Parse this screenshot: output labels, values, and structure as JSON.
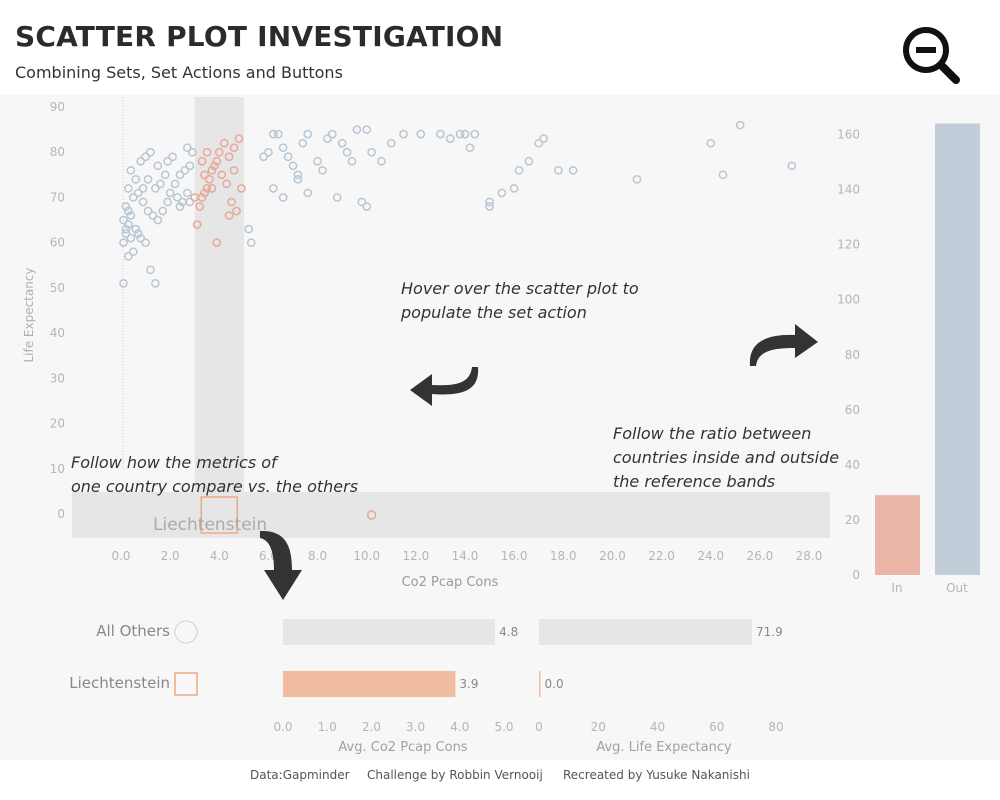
{
  "header": {
    "title": "SCATTER PLOT INVESTIGATION",
    "subtitle": "Combining Sets, Set Actions and Buttons",
    "zoom_icon": "zoom-out-icon"
  },
  "annotations": {
    "hover": [
      "Hover over the scatter plot to",
      "populate the set action"
    ],
    "follow_ratio": [
      "Follow the ratio between",
      "countries inside and outside",
      "the reference bands"
    ],
    "follow_metrics": [
      "Follow how the metrics of",
      "one country compare vs. the others"
    ]
  },
  "colors": {
    "in": "#e8a899",
    "out": "#b8c6d3",
    "band": "#e6e6e6",
    "highlight": "#f0a884",
    "arrow": "#333333"
  },
  "chart_data": [
    {
      "type": "scatter",
      "xlabel": "Co2 Pcap Cons",
      "ylabel": "Life Expectancy",
      "xlim": [
        0,
        28
      ],
      "ylim": [
        0,
        90
      ],
      "x_ticks": [
        "0.0",
        "2.0",
        "4.0",
        "6.0",
        "8.0",
        "10.0",
        "12.0",
        "14.0",
        "16.0",
        "18.0",
        "20.0",
        "22.0",
        "24.0",
        "26.0",
        "28.0"
      ],
      "y_ticks": [
        "0",
        "10",
        "20",
        "30",
        "40",
        "50",
        "60",
        "70",
        "80",
        "90"
      ],
      "reference_band_x": [
        3.0,
        5.0
      ],
      "highlight_label": "Liechtenstein",
      "highlight_point": {
        "x": 4.0,
        "y": 0
      },
      "series": [
        {
          "name": "Out",
          "points": [
            [
              0.1,
              51
            ],
            [
              0.3,
              57
            ],
            [
              0.1,
              60
            ],
            [
              0.2,
              62
            ],
            [
              0.3,
              64
            ],
            [
              0.1,
              65
            ],
            [
              0.4,
              66
            ],
            [
              0.2,
              68
            ],
            [
              0.5,
              70
            ],
            [
              0.3,
              72
            ],
            [
              0.6,
              74
            ],
            [
              0.4,
              76
            ],
            [
              0.8,
              78
            ],
            [
              1.0,
              79
            ],
            [
              1.2,
              80
            ],
            [
              0.7,
              71
            ],
            [
              0.9,
              69
            ],
            [
              1.1,
              67
            ],
            [
              1.3,
              66
            ],
            [
              0.6,
              63
            ],
            [
              0.8,
              61
            ],
            [
              1.0,
              60
            ],
            [
              1.5,
              65
            ],
            [
              1.7,
              67
            ],
            [
              1.9,
              69
            ],
            [
              2.0,
              71
            ],
            [
              2.2,
              73
            ],
            [
              2.4,
              75
            ],
            [
              2.6,
              76
            ],
            [
              2.8,
              77
            ],
            [
              1.6,
              73
            ],
            [
              1.8,
              75
            ],
            [
              1.4,
              72
            ],
            [
              2.3,
              70
            ],
            [
              2.5,
              69
            ],
            [
              2.7,
              71
            ],
            [
              1.2,
              54
            ],
            [
              1.4,
              51
            ],
            [
              0.5,
              58
            ],
            [
              0.7,
              62
            ],
            [
              0.3,
              67
            ],
            [
              0.9,
              72
            ],
            [
              1.1,
              74
            ],
            [
              1.5,
              77
            ],
            [
              1.9,
              78
            ],
            [
              2.1,
              79
            ],
            [
              2.7,
              81
            ],
            [
              2.9,
              80
            ],
            [
              2.4,
              68
            ],
            [
              2.8,
              69
            ],
            [
              5.2,
              63
            ],
            [
              5.3,
              60
            ],
            [
              5.8,
              79
            ],
            [
              6.0,
              80
            ],
            [
              6.2,
              84
            ],
            [
              6.4,
              84
            ],
            [
              6.6,
              81
            ],
            [
              6.8,
              79
            ],
            [
              7.0,
              77
            ],
            [
              7.2,
              75
            ],
            [
              7.4,
              82
            ],
            [
              7.6,
              84
            ],
            [
              8.0,
              78
            ],
            [
              8.2,
              76
            ],
            [
              8.4,
              83
            ],
            [
              8.6,
              84
            ],
            [
              9.0,
              82
            ],
            [
              9.2,
              80
            ],
            [
              9.4,
              78
            ],
            [
              9.6,
              85
            ],
            [
              10.0,
              85
            ],
            [
              10.2,
              80
            ],
            [
              10.6,
              78
            ],
            [
              11.0,
              82
            ],
            [
              8.8,
              70
            ],
            [
              9.8,
              69
            ],
            [
              10.0,
              68
            ],
            [
              6.2,
              72
            ],
            [
              6.6,
              70
            ],
            [
              7.2,
              74
            ],
            [
              7.6,
              71
            ],
            [
              13.0,
              84
            ],
            [
              13.4,
              83
            ],
            [
              13.8,
              84
            ],
            [
              14.0,
              84
            ],
            [
              14.4,
              84
            ],
            [
              14.2,
              81
            ],
            [
              15.0,
              69
            ],
            [
              15.0,
              68
            ],
            [
              15.5,
              71
            ],
            [
              16.0,
              72
            ],
            [
              16.2,
              76
            ],
            [
              16.6,
              78
            ],
            [
              17.0,
              82
            ],
            [
              17.2,
              83
            ],
            [
              17.8,
              76
            ],
            [
              18.4,
              76
            ],
            [
              21.0,
              74
            ],
            [
              24.0,
              82
            ],
            [
              24.5,
              75
            ],
            [
              25.2,
              86
            ],
            [
              27.3,
              77
            ],
            [
              12.2,
              84
            ],
            [
              11.5,
              84
            ],
            [
              0.2,
              63
            ],
            [
              0.4,
              61
            ]
          ]
        },
        {
          "name": "In",
          "points": [
            [
              3.1,
              64
            ],
            [
              3.2,
              68
            ],
            [
              3.3,
              70
            ],
            [
              3.4,
              71
            ],
            [
              3.5,
              72
            ],
            [
              3.6,
              74
            ],
            [
              3.7,
              76
            ],
            [
              3.8,
              77
            ],
            [
              3.9,
              78
            ],
            [
              4.0,
              80
            ],
            [
              4.2,
              82
            ],
            [
              4.4,
              79
            ],
            [
              4.6,
              81
            ],
            [
              4.8,
              83
            ],
            [
              3.3,
              78
            ],
            [
              3.5,
              80
            ],
            [
              4.1,
              75
            ],
            [
              4.3,
              73
            ],
            [
              4.5,
              69
            ],
            [
              4.7,
              67
            ],
            [
              4.9,
              72
            ],
            [
              3.9,
              60
            ],
            [
              3.7,
              72
            ],
            [
              3.4,
              75
            ],
            [
              4.6,
              76
            ],
            [
              3.0,
              70
            ],
            [
              4.4,
              66
            ]
          ]
        }
      ]
    },
    {
      "type": "bar",
      "categories": [
        "In",
        "Out"
      ],
      "values": [
        29,
        164
      ],
      "ylim": [
        0,
        170
      ],
      "y_ticks": [
        "0",
        "20",
        "40",
        "60",
        "80",
        "100",
        "120",
        "140",
        "160"
      ]
    },
    {
      "type": "bar",
      "xlabel": "Avg. Co2 Pcap Cons",
      "categories": [
        "All Others",
        "Liechtenstein"
      ],
      "values": [
        4.8,
        3.9
      ],
      "value_labels": [
        "4.8",
        "3.9"
      ],
      "xlim": [
        0,
        5.0
      ],
      "x_ticks": [
        "0.0",
        "1.0",
        "2.0",
        "3.0",
        "4.0",
        "5.0"
      ]
    },
    {
      "type": "bar",
      "xlabel": "Avg. Life Expectancy",
      "categories": [
        "All Others",
        "Liechtenstein"
      ],
      "values": [
        71.9,
        0.0
      ],
      "value_labels": [
        "71.9",
        "0.0"
      ],
      "xlim": [
        0,
        80
      ],
      "x_ticks": [
        "0",
        "20",
        "40",
        "60",
        "80"
      ]
    }
  ],
  "footer": {
    "data": "Data:Gapminder",
    "challenge": "Challenge by Robbin Vernooij",
    "recreated": "Recreated by Yusuke Nakanishi"
  }
}
